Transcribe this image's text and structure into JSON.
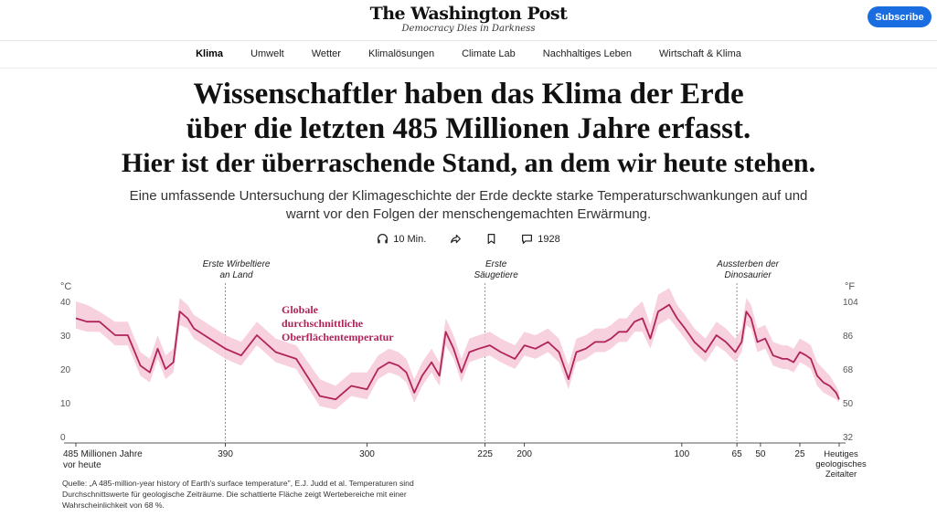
{
  "masthead": {
    "logo": "The Washington Post",
    "tagline": "Democracy Dies in Darkness",
    "subscribe_label": "Subscribe"
  },
  "nav": {
    "items": [
      "Klima",
      "Umwelt",
      "Wetter",
      "Klimalösungen",
      "Climate Lab",
      "Nachhaltiges Leben",
      "Wirtschaft & Klima"
    ],
    "active": "Klima"
  },
  "article": {
    "headline_line1": "Wissenschaftler haben das Klima der Erde",
    "headline_line2": "über die letzten 485 Millionen Jahre erfasst.",
    "headline_line3": "Hier ist der überraschende Stand, an dem wir heute stehen.",
    "dek": "Eine umfassende Untersuchung der Klimageschichte der Erde deckte starke Temperaturschwankungen auf und warnt vor den Folgen der menschengemachten Erwärmung.",
    "listen_label": "10 Min.",
    "comments_count": "1928"
  },
  "colors": {
    "line": "#b0245a",
    "band": "#f7c9d9",
    "subscribe": "#1a6de0"
  },
  "chart_data": {
    "type": "area",
    "x_unit": "Millionen Jahre vor heute",
    "y_unit_left": "°C",
    "y_unit_right": "°F",
    "ylim": [
      0,
      40
    ],
    "yticks_left": [
      0,
      10,
      20,
      30,
      40
    ],
    "yticks_right": [
      "32",
      "50",
      "68",
      "86",
      "104"
    ],
    "xticks": [
      {
        "x": 485,
        "label": "485 Millionen Jahre vor heute"
      },
      {
        "x": 390,
        "label": "390"
      },
      {
        "x": 300,
        "label": "300"
      },
      {
        "x": 225,
        "label": "225"
      },
      {
        "x": 200,
        "label": "200"
      },
      {
        "x": 100,
        "label": "100"
      },
      {
        "x": 65,
        "label": "65"
      },
      {
        "x": 50,
        "label": "50"
      },
      {
        "x": 25,
        "label": "25"
      },
      {
        "x": 0,
        "label": "Heutiges geologisches Zeitalter"
      }
    ],
    "series": [
      {
        "name": "Globale durchschnittliche Oberflächentemperatur",
        "x": [
          485,
          478,
          470,
          460,
          452,
          444,
          438,
          433,
          428,
          423,
          419,
          414,
          410,
          400,
          390,
          380,
          370,
          358,
          345,
          330,
          320,
          310,
          300,
          293,
          286,
          280,
          275,
          270,
          265,
          259,
          254,
          250,
          245,
          240,
          235,
          229,
          222,
          215,
          206,
          200,
          193,
          185,
          178,
          172,
          167,
          161,
          155,
          149,
          145,
          140,
          135,
          130,
          125,
          120,
          115,
          108,
          103,
          98,
          92,
          85,
          78,
          72,
          66,
          62,
          59,
          56,
          52,
          47,
          42,
          36,
          33,
          29,
          25,
          21,
          18,
          14,
          10,
          6,
          2,
          0
        ],
        "y": [
          35,
          34,
          34,
          30,
          30,
          21,
          19,
          26,
          20,
          22,
          37,
          35,
          32,
          29,
          26,
          24,
          30,
          25,
          23,
          12,
          11,
          15,
          14,
          20,
          22,
          21,
          19,
          13,
          18,
          22,
          18,
          31,
          26,
          19,
          25,
          26,
          27,
          25,
          23,
          27,
          26,
          28,
          25,
          17,
          25,
          26,
          28,
          28,
          29,
          31,
          31,
          34,
          35,
          29,
          37,
          39,
          35,
          32,
          28,
          25,
          30,
          28,
          25,
          28,
          37,
          35,
          28,
          29,
          24,
          23,
          23,
          22,
          25,
          24,
          23,
          18,
          16,
          15,
          13,
          11
        ],
        "low": [
          32,
          31,
          31,
          27,
          27,
          18,
          16,
          23,
          17,
          19,
          33,
          32,
          29,
          26,
          23,
          21,
          27,
          22,
          20,
          9,
          8,
          12,
          11,
          17,
          19,
          18,
          16,
          10,
          15,
          19,
          15,
          27,
          23,
          16,
          22,
          23,
          24,
          22,
          20,
          24,
          23,
          25,
          22,
          14,
          22,
          23,
          25,
          25,
          26,
          28,
          28,
          31,
          31,
          26,
          33,
          35,
          32,
          29,
          25,
          22,
          27,
          25,
          22,
          25,
          33,
          32,
          25,
          26,
          21,
          20,
          20,
          19,
          22,
          21,
          20,
          15,
          13,
          12,
          11,
          10
        ],
        "high": [
          40,
          39,
          37,
          34,
          34,
          25,
          23,
          30,
          24,
          26,
          41,
          39,
          36,
          33,
          30,
          28,
          34,
          29,
          27,
          17,
          15,
          19,
          19,
          24,
          26,
          25,
          23,
          17,
          22,
          26,
          22,
          35,
          30,
          23,
          29,
          30,
          31,
          29,
          27,
          31,
          30,
          32,
          29,
          21,
          29,
          30,
          32,
          32,
          33,
          35,
          35,
          38,
          40,
          33,
          42,
          44,
          39,
          36,
          32,
          29,
          34,
          32,
          29,
          32,
          41,
          39,
          32,
          33,
          28,
          27,
          27,
          26,
          29,
          28,
          27,
          22,
          20,
          18,
          15,
          13
        ]
      }
    ],
    "annotations": [
      {
        "x": 390,
        "label": "Erste Wirbeltiere an Land"
      },
      {
        "x": 225,
        "label": "Erste Säugetiere"
      },
      {
        "x": 65,
        "label": "Aussterben der Dinosaurier"
      }
    ],
    "series_label": "Globale durchschnittliche Oberflächentemperatur",
    "grid": false,
    "source": "Quelle: „A 485-million-year history of Earth's surface temperature\", E.J. Judd et al. Temperaturen sind Durchschnittswerte für geologische Zeiträume. Die schattierte Fläche zeigt Wertebereiche mit einer Wahrscheinlichkeit von 68 %."
  }
}
